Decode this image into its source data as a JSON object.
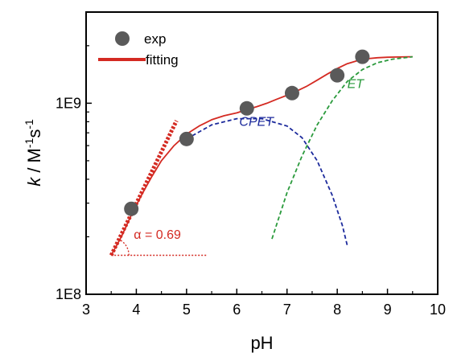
{
  "chart_data": {
    "type": "scatter",
    "xlabel": "pH",
    "ylabel_parts": [
      "k",
      " / M",
      "-1",
      "s",
      "-1"
    ],
    "xlim": [
      3,
      10
    ],
    "ylim": [
      100000000.0,
      3000000000.0
    ],
    "yscale": "log",
    "x_ticks": [
      3,
      4,
      5,
      6,
      7,
      8,
      9,
      10
    ],
    "x_tick_labels": [
      "3",
      "4",
      "5",
      "6",
      "7",
      "8",
      "9",
      "10"
    ],
    "y_ticks": [
      100000000.0,
      1000000000.0
    ],
    "y_tick_labels": [
      "1E8",
      "1E9"
    ],
    "grid": false,
    "legend": [
      {
        "label": "exp",
        "marker": "circle",
        "color": "#5a5a5a"
      },
      {
        "label": "fitting",
        "marker": "line",
        "color": "#d42a22"
      }
    ],
    "legend_position": "top-left",
    "series": [
      {
        "name": "exp",
        "kind": "markers",
        "color": "#5a5a5a",
        "x": [
          3.9,
          5.0,
          6.2,
          7.1,
          8.0,
          8.5
        ],
        "y": [
          280000000.0,
          650000000.0,
          940000000.0,
          1130000000.0,
          1400000000.0,
          1750000000.0
        ]
      },
      {
        "name": "fitting",
        "kind": "line",
        "color": "#d42a22",
        "x": [
          3.5,
          3.7,
          3.9,
          4.1,
          4.3,
          4.5,
          4.75,
          5.0,
          5.25,
          5.5,
          5.75,
          6.0,
          6.2,
          6.4,
          6.6,
          6.8,
          7.0,
          7.2,
          7.4,
          7.6,
          7.8,
          8.0,
          8.2,
          8.4,
          8.6,
          8.8,
          9.0,
          9.2,
          9.5
        ],
        "y": [
          160000000.0,
          200000000.0,
          260000000.0,
          330000000.0,
          410000000.0,
          500000000.0,
          600000000.0,
          690000000.0,
          760000000.0,
          820000000.0,
          860000000.0,
          890000000.0,
          925000000.0,
          960000000.0,
          1000000000.0,
          1050000000.0,
          1100000000.0,
          1160000000.0,
          1230000000.0,
          1320000000.0,
          1420000000.0,
          1520000000.0,
          1610000000.0,
          1670000000.0,
          1710000000.0,
          1730000000.0,
          1740000000.0,
          1745000000.0,
          1750000000.0
        ]
      },
      {
        "name": "CPET",
        "kind": "dashed",
        "color": "#1c2a9c",
        "x": [
          5.0,
          5.5,
          6.0,
          6.5,
          7.0,
          7.3,
          7.6,
          7.9,
          8.1,
          8.2
        ],
        "y": [
          650000000.0,
          770000000.0,
          830000000.0,
          830000000.0,
          760000000.0,
          660000000.0,
          500000000.0,
          330000000.0,
          230000000.0,
          180000000.0
        ]
      },
      {
        "name": "ET",
        "kind": "dashed",
        "color": "#2a9a3c",
        "x": [
          6.7,
          7.0,
          7.3,
          7.6,
          7.9,
          8.2,
          8.5,
          8.8,
          9.1,
          9.5
        ],
        "y": [
          195000000.0,
          340000000.0,
          530000000.0,
          770000000.0,
          1030000000.0,
          1300000000.0,
          1500000000.0,
          1630000000.0,
          1700000000.0,
          1750000000.0
        ]
      },
      {
        "name": "slope",
        "kind": "dotted-thick",
        "color": "#d42a22",
        "x": [
          3.5,
          4.8
        ],
        "y": [
          160000000.0,
          810000000.0
        ]
      },
      {
        "name": "baseline",
        "kind": "dotted-thin",
        "color": "#d42a22",
        "x": [
          3.5,
          5.4
        ],
        "y": [
          160000000.0,
          160000000.0
        ]
      }
    ],
    "annotations": [
      {
        "text": "CPET",
        "x": 6.05,
        "y": 760000000.0,
        "color": "#1c2a9c",
        "italic": true
      },
      {
        "text": "ET",
        "x": 8.2,
        "y": 1200000000.0,
        "color": "#2a9a3c",
        "italic": true
      },
      {
        "text": "α = 0.69",
        "x": 3.95,
        "y": 195000000.0,
        "color": "#d42a22",
        "italic": false
      }
    ],
    "arc": {
      "x": 3.5,
      "y": 160000000.0,
      "color": "#d42a22"
    }
  }
}
